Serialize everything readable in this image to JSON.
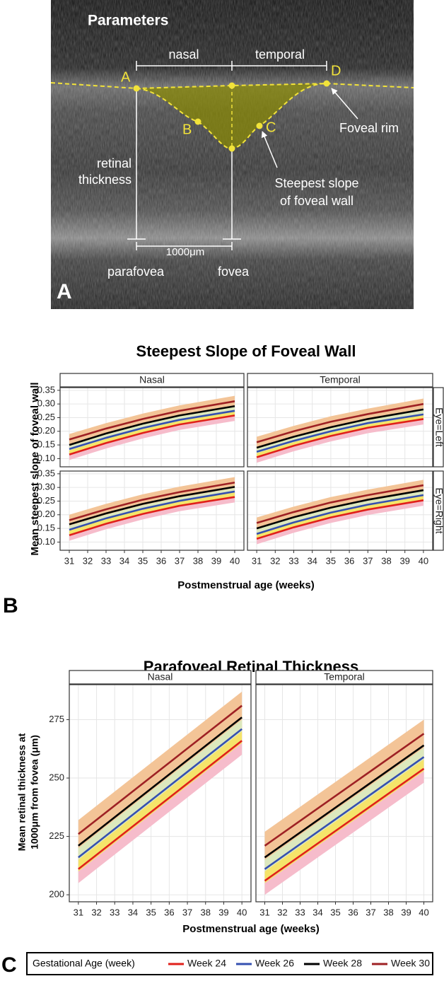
{
  "panel_a": {
    "letter": "A",
    "title": "Parameters",
    "nasal": "nasal",
    "temporal": "temporal",
    "point_a": "A",
    "point_b": "B",
    "point_c": "C",
    "point_d": "D",
    "foveal_rim": "Foveal rim",
    "retinal": "retinal",
    "thickness": "thickness",
    "steepest_1": "Steepest slope",
    "steepest_2": "of foveal wall",
    "distance": "1000μm",
    "parafovea": "parafovea",
    "fovea": "fovea"
  },
  "panel_b": {
    "letter": "B",
    "title": "Steepest Slope of Foveal Wall",
    "x_label": "Postmenstrual age (weeks)",
    "y_label": "Mean steepest slope of foveal wall"
  },
  "panel_c": {
    "letter": "C",
    "title": "Parafoveal Retinal Thickness",
    "x_label": "Postmenstrual age (weeks)",
    "y_label": [
      "Mean retinal thickness at",
      "1000μm from fovea (μm)"
    ]
  },
  "legend": {
    "title": "Gestational Age (week)"
  },
  "chart_data": [
    {
      "type": "line",
      "col_label": "Nasal",
      "x": [
        31,
        33,
        35,
        37,
        40
      ],
      "xlim": [
        30.5,
        40.5
      ],
      "xticks": [
        31,
        32,
        33,
        34,
        35,
        36,
        37,
        38,
        39,
        40
      ],
      "ylim": [
        0.07,
        0.36
      ],
      "yticks": [
        {
          "value": 0.1,
          "label": "0.10"
        },
        0.15,
        {
          "value": 0.2,
          "label": "0.20"
        },
        0.25,
        {
          "value": 0.3,
          "label": "0.30"
        },
        0.35
      ],
      "grid": true,
      "series": [
        {
          "name": "Week 24",
          "color": "#e0201b",
          "band_color": "#f6bccb",
          "values": [
            0.115,
            0.157,
            0.194,
            0.225,
            0.258
          ],
          "lower": [
            0.095,
            0.137,
            0.174,
            0.205,
            0.238
          ],
          "upper": [
            0.135,
            0.177,
            0.214,
            0.245,
            0.278
          ]
        },
        {
          "name": "Week 26",
          "color": "#3550b0",
          "band_color": "#f5e46a",
          "values": [
            0.135,
            0.176,
            0.212,
            0.242,
            0.275
          ],
          "lower": [
            0.115,
            0.156,
            0.192,
            0.222,
            0.255
          ],
          "upper": [
            0.155,
            0.196,
            0.232,
            0.262,
            0.295
          ]
        },
        {
          "name": "Week 28",
          "color": "#000000",
          "band_color": "#dde8bd",
          "values": [
            0.15,
            0.192,
            0.228,
            0.258,
            0.292
          ],
          "lower": [
            0.13,
            0.172,
            0.208,
            0.238,
            0.272
          ],
          "upper": [
            0.17,
            0.212,
            0.248,
            0.278,
            0.312
          ]
        },
        {
          "name": "Week 30",
          "color": "#9e2124",
          "band_color": "#f3c497",
          "values": [
            0.17,
            0.21,
            0.245,
            0.275,
            0.31
          ],
          "lower": [
            0.15,
            0.19,
            0.225,
            0.255,
            0.29
          ],
          "upper": [
            0.19,
            0.23,
            0.265,
            0.295,
            0.33
          ]
        }
      ]
    },
    {
      "type": "line",
      "col_label": "Temporal",
      "row_label": "Eye=Left",
      "x": [
        31,
        33,
        35,
        37,
        40
      ],
      "xlim": [
        30.5,
        40.5
      ],
      "xticks": [
        31,
        32,
        33,
        34,
        35,
        36,
        37,
        38,
        39,
        40
      ],
      "ylim": [
        0.07,
        0.36
      ],
      "yticks": [
        {
          "value": 0.1,
          "label": "0.10"
        },
        0.15,
        {
          "value": 0.2,
          "label": "0.20"
        },
        0.25,
        {
          "value": 0.3,
          "label": "0.30"
        },
        0.35
      ],
      "grid": true,
      "series": [
        {
          "name": "Week 24",
          "color": "#e0201b",
          "band_color": "#f6bccb",
          "values": [
            0.105,
            0.147,
            0.183,
            0.213,
            0.245
          ],
          "lower": [
            0.085,
            0.127,
            0.163,
            0.193,
            0.225
          ],
          "upper": [
            0.125,
            0.167,
            0.203,
            0.233,
            0.265
          ]
        },
        {
          "name": "Week 26",
          "color": "#3550b0",
          "band_color": "#f5e46a",
          "values": [
            0.125,
            0.165,
            0.2,
            0.23,
            0.262
          ],
          "lower": [
            0.105,
            0.145,
            0.18,
            0.21,
            0.242
          ],
          "upper": [
            0.145,
            0.185,
            0.22,
            0.25,
            0.282
          ]
        },
        {
          "name": "Week 28",
          "color": "#000000",
          "band_color": "#dde8bd",
          "values": [
            0.14,
            0.18,
            0.215,
            0.245,
            0.28
          ],
          "lower": [
            0.12,
            0.16,
            0.195,
            0.225,
            0.26
          ],
          "upper": [
            0.16,
            0.2,
            0.235,
            0.265,
            0.3
          ]
        },
        {
          "name": "Week 30",
          "color": "#9e2124",
          "band_color": "#f3c497",
          "values": [
            0.16,
            0.2,
            0.235,
            0.263,
            0.3
          ],
          "lower": [
            0.14,
            0.18,
            0.215,
            0.243,
            0.28
          ],
          "upper": [
            0.18,
            0.22,
            0.255,
            0.283,
            0.32
          ]
        }
      ]
    },
    {
      "type": "line",
      "x": [
        31,
        33,
        35,
        37,
        40
      ],
      "xlim": [
        30.5,
        40.5
      ],
      "xticks": [
        31,
        32,
        33,
        34,
        35,
        36,
        37,
        38,
        39,
        40
      ],
      "ylim": [
        0.07,
        0.36
      ],
      "yticks": [
        {
          "value": 0.1,
          "label": "0.10"
        },
        0.15,
        {
          "value": 0.2,
          "label": "0.20"
        },
        0.25,
        {
          "value": 0.3,
          "label": "0.30"
        },
        0.35
      ],
      "grid": true,
      "series": [
        {
          "name": "Week 24",
          "color": "#e0201b",
          "band_color": "#f6bccb",
          "values": [
            0.125,
            0.167,
            0.203,
            0.233,
            0.265
          ],
          "lower": [
            0.105,
            0.147,
            0.183,
            0.213,
            0.245
          ],
          "upper": [
            0.145,
            0.187,
            0.223,
            0.253,
            0.285
          ]
        },
        {
          "name": "Week 26",
          "color": "#3550b0",
          "band_color": "#f5e46a",
          "values": [
            0.145,
            0.187,
            0.222,
            0.251,
            0.285
          ],
          "lower": [
            0.125,
            0.167,
            0.202,
            0.231,
            0.265
          ],
          "upper": [
            0.165,
            0.207,
            0.242,
            0.271,
            0.305
          ]
        },
        {
          "name": "Week 28",
          "color": "#000000",
          "band_color": "#dde8bd",
          "values": [
            0.165,
            0.205,
            0.24,
            0.268,
            0.302
          ],
          "lower": [
            0.145,
            0.185,
            0.22,
            0.248,
            0.282
          ],
          "upper": [
            0.185,
            0.225,
            0.26,
            0.288,
            0.322
          ]
        },
        {
          "name": "Week 30",
          "color": "#9e2124",
          "band_color": "#f3c497",
          "values": [
            0.18,
            0.22,
            0.255,
            0.283,
            0.318
          ],
          "lower": [
            0.16,
            0.2,
            0.235,
            0.263,
            0.298
          ],
          "upper": [
            0.2,
            0.24,
            0.275,
            0.303,
            0.338
          ]
        }
      ]
    },
    {
      "type": "line",
      "row_label": "Eye=Right",
      "x": [
        31,
        33,
        35,
        37,
        40
      ],
      "xlim": [
        30.5,
        40.5
      ],
      "xticks": [
        31,
        32,
        33,
        34,
        35,
        36,
        37,
        38,
        39,
        40
      ],
      "ylim": [
        0.07,
        0.36
      ],
      "yticks": [
        {
          "value": 0.1,
          "label": "0.10"
        },
        0.15,
        {
          "value": 0.2,
          "label": "0.20"
        },
        0.25,
        {
          "value": 0.3,
          "label": "0.30"
        },
        0.35
      ],
      "grid": true,
      "series": [
        {
          "name": "Week 24",
          "color": "#e0201b",
          "band_color": "#f6bccb",
          "values": [
            0.112,
            0.154,
            0.19,
            0.219,
            0.253
          ],
          "lower": [
            0.092,
            0.134,
            0.17,
            0.199,
            0.233
          ],
          "upper": [
            0.132,
            0.174,
            0.21,
            0.239,
            0.273
          ]
        },
        {
          "name": "Week 26",
          "color": "#3550b0",
          "band_color": "#f5e46a",
          "values": [
            0.13,
            0.172,
            0.208,
            0.237,
            0.272
          ],
          "lower": [
            0.11,
            0.152,
            0.188,
            0.217,
            0.252
          ],
          "upper": [
            0.15,
            0.192,
            0.228,
            0.257,
            0.292
          ]
        },
        {
          "name": "Week 28",
          "color": "#000000",
          "band_color": "#dde8bd",
          "values": [
            0.15,
            0.191,
            0.226,
            0.255,
            0.29
          ],
          "lower": [
            0.13,
            0.171,
            0.206,
            0.235,
            0.27
          ],
          "upper": [
            0.17,
            0.211,
            0.246,
            0.275,
            0.31
          ]
        },
        {
          "name": "Week 30",
          "color": "#9e2124",
          "band_color": "#f3c497",
          "values": [
            0.17,
            0.21,
            0.245,
            0.272,
            0.308
          ],
          "lower": [
            0.15,
            0.19,
            0.225,
            0.252,
            0.288
          ],
          "upper": [
            0.19,
            0.23,
            0.265,
            0.292,
            0.328
          ]
        }
      ]
    },
    {
      "type": "line",
      "col_label": "Nasal",
      "x": [
        31,
        40
      ],
      "xlim": [
        30.5,
        40.5
      ],
      "xticks": [
        31,
        32,
        33,
        34,
        35,
        36,
        37,
        38,
        39,
        40
      ],
      "ylim": [
        197,
        290
      ],
      "yticks": [
        200,
        225,
        250,
        275
      ],
      "grid": true,
      "series": [
        {
          "name": "Week 24",
          "color": "#e0201b",
          "band_color": "#f6bccb",
          "values": [
            211,
            266
          ],
          "lower": [
            205,
            260
          ],
          "upper": [
            217,
            272
          ]
        },
        {
          "name": "Week 26",
          "color": "#3550b0",
          "band_color": "#f5e46a",
          "values": [
            216,
            271
          ],
          "lower": [
            210,
            265
          ],
          "upper": [
            222,
            277
          ]
        },
        {
          "name": "Week 28",
          "color": "#000000",
          "band_color": "#dde8bd",
          "values": [
            221,
            276
          ],
          "lower": [
            215,
            270
          ],
          "upper": [
            227,
            282
          ]
        },
        {
          "name": "Week 30",
          "color": "#9e2124",
          "band_color": "#f3c497",
          "values": [
            226,
            281
          ],
          "lower": [
            220,
            275
          ],
          "upper": [
            232,
            287
          ]
        }
      ]
    },
    {
      "type": "line",
      "col_label": "Temporal",
      "x": [
        31,
        40
      ],
      "xlim": [
        30.5,
        40.5
      ],
      "xticks": [
        31,
        32,
        33,
        34,
        35,
        36,
        37,
        38,
        39,
        40
      ],
      "ylim": [
        197,
        290
      ],
      "yticks": [
        200,
        225,
        250,
        275
      ],
      "grid": true,
      "series": [
        {
          "name": "Week 24",
          "color": "#e0201b",
          "band_color": "#f6bccb",
          "values": [
            206,
            254
          ],
          "lower": [
            200,
            248
          ],
          "upper": [
            212,
            260
          ]
        },
        {
          "name": "Week 26",
          "color": "#3550b0",
          "band_color": "#f5e46a",
          "values": [
            211,
            259
          ],
          "lower": [
            205,
            253
          ],
          "upper": [
            217,
            265
          ]
        },
        {
          "name": "Week 28",
          "color": "#000000",
          "band_color": "#dde8bd",
          "values": [
            216,
            264
          ],
          "lower": [
            210,
            258
          ],
          "upper": [
            222,
            270
          ]
        },
        {
          "name": "Week 30",
          "color": "#9e2124",
          "band_color": "#f3c497",
          "values": [
            221,
            269
          ],
          "lower": [
            215,
            263
          ],
          "upper": [
            227,
            275
          ]
        }
      ]
    }
  ]
}
